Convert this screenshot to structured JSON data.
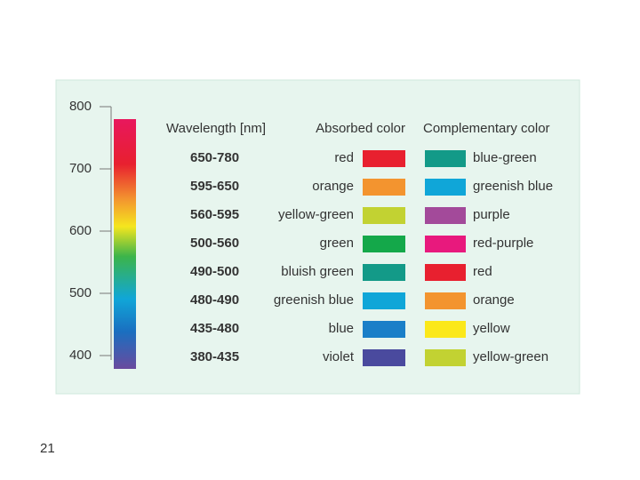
{
  "scale": {
    "ticks": [
      800,
      700,
      600,
      500,
      400
    ]
  },
  "table": {
    "headers": [
      "Wavelength [nm]",
      "Absorbed color",
      "Complementary color"
    ],
    "rows": [
      {
        "wavelength": "650-780",
        "absorbed": "red",
        "absorbed_color": "#e8202f",
        "complementary": "blue-green",
        "complementary_color": "#139a88"
      },
      {
        "wavelength": "595-650",
        "absorbed": "orange",
        "absorbed_color": "#f3942f",
        "complementary": "greenish blue",
        "complementary_color": "#10a6d8"
      },
      {
        "wavelength": "560-595",
        "absorbed": "yellow-green",
        "absorbed_color": "#c2d232",
        "complementary": "purple",
        "complementary_color": "#a34a9a"
      },
      {
        "wavelength": "500-560",
        "absorbed": "green",
        "absorbed_color": "#14a84a",
        "complementary": "red-purple",
        "complementary_color": "#e8197d"
      },
      {
        "wavelength": "490-500",
        "absorbed": "bluish green",
        "absorbed_color": "#139a88",
        "complementary": "red",
        "complementary_color": "#e8202f"
      },
      {
        "wavelength": "480-490",
        "absorbed": "greenish blue",
        "absorbed_color": "#10a6d8",
        "complementary": "orange",
        "complementary_color": "#f3942f"
      },
      {
        "wavelength": "435-480",
        "absorbed": "blue",
        "absorbed_color": "#1a7fc8",
        "complementary": "yellow",
        "complementary_color": "#fbe81a"
      },
      {
        "wavelength": "380-435",
        "absorbed": "violet",
        "absorbed_color": "#4a4a9e",
        "complementary": "yellow-green",
        "complementary_color": "#c2d232"
      }
    ]
  },
  "page_number": "21"
}
